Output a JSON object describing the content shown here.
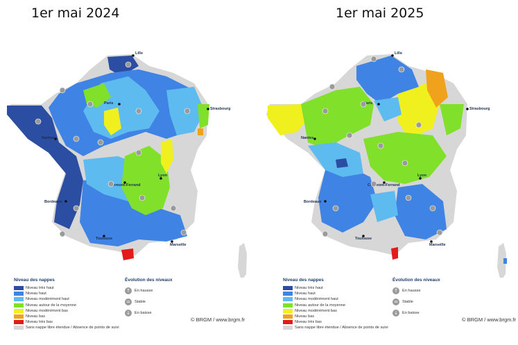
{
  "maps": [
    {
      "title": "1er mai 2024",
      "credit": "© BRGM / www.brgm.fr"
    },
    {
      "title": "1er mai 2025",
      "credit": "© BRGM / www.brgm.fr"
    }
  ],
  "cities": [
    "Lille",
    "Paris",
    "Strasbourg",
    "Nantes",
    "Lyon",
    "Clermont-Ferrand",
    "Bordeaux",
    "Toulouse",
    "Marseille"
  ],
  "legend": {
    "title": "Niveau des nappes",
    "items": [
      {
        "label": "Niveau très haut",
        "color": "#2b4ea3"
      },
      {
        "label": "Niveau haut",
        "color": "#3f83e4"
      },
      {
        "label": "Niveau modérément haut",
        "color": "#5dbbef"
      },
      {
        "label": "Niveau autour de la moyenne",
        "color": "#80e02a"
      },
      {
        "label": "Niveau modérément bas",
        "color": "#f0f01e"
      },
      {
        "label": "Niveau bas",
        "color": "#f0a21c"
      },
      {
        "label": "Niveau très bas",
        "color": "#e21b1b"
      },
      {
        "label": "Sans nappe libre étendue / Absence de points de suivi",
        "color": "#d7d7d7"
      }
    ]
  },
  "evolution": {
    "title": "Évolution des niveaux",
    "items": [
      {
        "label": "En hausse",
        "icon": "up-arrow-icon",
        "glyph": "↑"
      },
      {
        "label": "Stable",
        "icon": "stable-icon",
        "glyph": "="
      },
      {
        "label": "En baisse",
        "icon": "down-arrow-icon",
        "glyph": "↓"
      }
    ]
  }
}
